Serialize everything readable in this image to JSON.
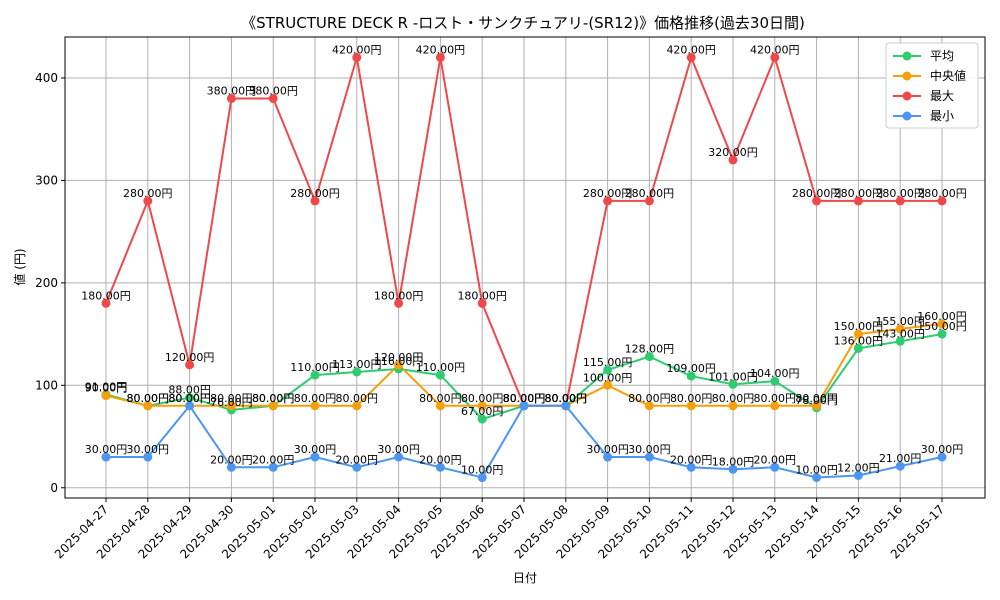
{
  "chart_data": {
    "type": "line",
    "title": "《STRUCTURE DECK R -ロスト・サンクチュアリ-(SR12)》価格推移(過去30日間)",
    "xlabel": "日付",
    "ylabel": "値 (円)",
    "ylim": [
      -10,
      440
    ],
    "yticks": [
      0,
      100,
      200,
      300,
      400
    ],
    "ytick_labels": [
      "0",
      "100",
      "200",
      "300",
      "400"
    ],
    "grid": true,
    "legend_position": "top-right",
    "unit_suffix": "円",
    "categories": [
      "2025-04-27",
      "2025-04-28",
      "2025-04-29",
      "2025-04-30",
      "2025-05-01",
      "2025-05-02",
      "2025-05-03",
      "2025-05-04",
      "2025-05-05",
      "2025-05-06",
      "2025-05-07",
      "2025-05-08",
      "2025-05-09",
      "2025-05-10",
      "2025-05-11",
      "2025-05-12",
      "2025-05-13",
      "2025-05-14",
      "2025-05-15",
      "2025-05-16",
      "2025-05-17"
    ],
    "series": [
      {
        "name": "平均",
        "color": "#2ecc71",
        "values": [
          91,
          80,
          88,
          76,
          80,
          110,
          113,
          116,
          110,
          67,
          80,
          80,
          115,
          128,
          109,
          101,
          104,
          78,
          136,
          143,
          150
        ]
      },
      {
        "name": "中央値",
        "color": "#f5a00a",
        "values": [
          90,
          80,
          80,
          80,
          80,
          80,
          80,
          120,
          80,
          80,
          80,
          80,
          100,
          80,
          80,
          80,
          80,
          80,
          150,
          155,
          160
        ]
      },
      {
        "name": "最大",
        "color": "#f04848",
        "values": [
          180,
          280,
          120,
          380,
          380,
          280,
          420,
          180,
          420,
          180,
          80,
          80,
          280,
          280,
          420,
          320,
          420,
          280,
          280,
          280,
          280
        ]
      },
      {
        "name": "最小",
        "color": "#4c95f0",
        "values": [
          30,
          30,
          80,
          20,
          20,
          30,
          20,
          30,
          20,
          10,
          80,
          80,
          30,
          30,
          20,
          18,
          20,
          10,
          12,
          21,
          30
        ]
      }
    ]
  }
}
